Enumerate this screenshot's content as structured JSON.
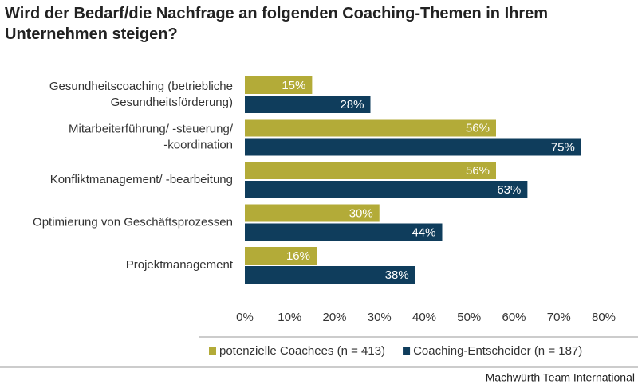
{
  "chart_data": {
    "type": "bar",
    "orientation": "horizontal",
    "title": "Wird der Bedarf/die Nachfrage an folgenden Coaching-Themen in Ihrem Unternehmen steigen?",
    "categories": [
      [
        "Gesundheitscoaching (betriebliche",
        "Gesundheitsförderung)"
      ],
      [
        "Mitarbeiterführung/ -steuerung/",
        "-koordination"
      ],
      [
        "Konfliktmanagement/ -bearbeitung"
      ],
      [
        "Optimierung von Geschäftsprozessen"
      ],
      [
        "Projektmanagement"
      ]
    ],
    "series": [
      {
        "name": "potenzielle Coachees (n = 413)",
        "color": "#b3ab38",
        "values": [
          15,
          56,
          56,
          30,
          16
        ],
        "value_labels": [
          "15%",
          "56%",
          "56%",
          "30%",
          "16%"
        ]
      },
      {
        "name": "Coaching-Entscheider (n = 187)",
        "color": "#0f3d5c",
        "values": [
          28,
          75,
          63,
          44,
          38
        ],
        "value_labels": [
          "28%",
          "75%",
          "63%",
          "44%",
          "38%"
        ]
      }
    ],
    "xlim": [
      0,
      80
    ],
    "xticks": [
      {
        "value": 0,
        "label": "0%"
      },
      {
        "value": 10,
        "label": "10%"
      },
      {
        "value": 20,
        "label": "20%"
      },
      {
        "value": 30,
        "label": "30%"
      },
      {
        "value": 40,
        "label": "40%"
      },
      {
        "value": 50,
        "label": "50%"
      },
      {
        "value": 60,
        "label": "60%"
      },
      {
        "value": 70,
        "label": "70%"
      },
      {
        "value": 80,
        "label": "80%"
      }
    ],
    "source": "Machwürth Team International"
  }
}
